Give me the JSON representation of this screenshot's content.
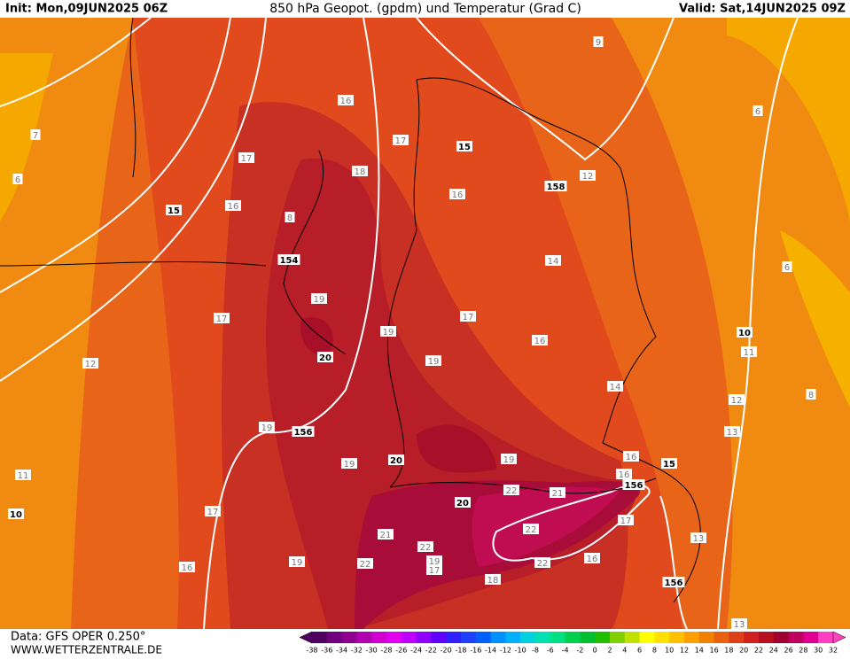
{
  "header": {
    "init": "Init: Mon,09JUN2025 06Z",
    "title": "850 hPa Geopot. (gpdm) und Temperatur (Grad C)",
    "valid": "Valid: Sat,14JUN2025 09Z"
  },
  "footer": {
    "data": "Data: GFS OPER 0.250°",
    "site": "WWW.WETTERZENTRALE.DE"
  },
  "colorbar": {
    "ticks": [
      -38,
      -36,
      -34,
      -32,
      -30,
      -28,
      -26,
      -24,
      -22,
      -20,
      -18,
      -16,
      -14,
      -12,
      -10,
      -8,
      -6,
      -4,
      -2,
      0,
      2,
      4,
      6,
      8,
      10,
      12,
      14,
      16,
      18,
      20,
      22,
      24,
      26,
      28,
      30,
      32
    ],
    "colors": [
      "#500060",
      "#700080",
      "#900090",
      "#b000b0",
      "#d000d0",
      "#e000f0",
      "#c000ff",
      "#9000ff",
      "#6000ff",
      "#3020ff",
      "#2040ff",
      "#0060ff",
      "#0090ff",
      "#00b0ff",
      "#00d0e0",
      "#00e0b0",
      "#00e080",
      "#00d050",
      "#00c030",
      "#20c000",
      "#80d000",
      "#c0e000",
      "#ffff00",
      "#ffe000",
      "#ffc000",
      "#ffa000",
      "#f08000",
      "#e86010",
      "#e04018",
      "#d02020",
      "#b81020",
      "#a00030",
      "#c00060",
      "#e00090",
      "#ff40c0"
    ]
  },
  "map": {
    "labels": [
      "9",
      "7",
      "6",
      "6",
      "16",
      "17",
      "15",
      "17",
      "18",
      "16",
      "158",
      "12",
      "15",
      "16",
      "8",
      "154",
      "14",
      "6",
      "19",
      "17",
      "17",
      "16",
      "10",
      "11",
      "19",
      "12",
      "20",
      "19",
      "14",
      "8",
      "12",
      "19",
      "156",
      "13",
      "20",
      "19",
      "19",
      "16",
      "15",
      "16",
      "156",
      "11",
      "22",
      "21",
      "20",
      "17",
      "10",
      "22",
      "17",
      "21",
      "13",
      "22",
      "19",
      "22",
      "16",
      "17",
      "19",
      "16",
      "22",
      "18",
      "156",
      "13"
    ]
  }
}
